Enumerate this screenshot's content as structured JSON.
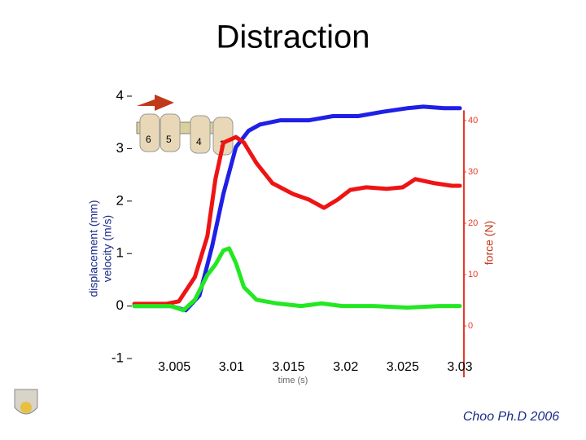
{
  "chart_data": {
    "type": "line",
    "title": "Distraction",
    "xlabel": "time (s)",
    "ylabel": "displacement (mm)",
    "ylabel_secondary": "velocity (m/s)",
    "y2label": "force (N)",
    "credit": "Choo Ph.D 2006",
    "image_labels": [
      "6",
      "5",
      "4",
      "3"
    ],
    "xlim": [
      3.001,
      3.03
    ],
    "xticks": [
      3.005,
      3.01,
      3.015,
      3.02,
      3.025,
      3.03
    ],
    "ylim": [
      -1,
      4
    ],
    "yticks": [
      -1,
      0,
      1,
      2,
      3,
      4
    ],
    "y2lim": [
      -10,
      42
    ],
    "y2ticks": [
      0,
      10,
      20,
      30,
      40
    ],
    "y2color": "#e53a2a",
    "series": [
      {
        "color": "#1f1fe8",
        "axis": "y",
        "x": [
          3.0015,
          3.0047,
          3.006,
          3.0072,
          3.0083,
          3.0093,
          3.0104,
          3.0115,
          3.0125,
          3.0143,
          3.0168,
          3.0189,
          3.0211,
          3.0232,
          3.0254,
          3.0268,
          3.0286,
          3.03
        ],
        "values": [
          0,
          0,
          -0.08,
          0.2,
          1.13,
          2.14,
          3.03,
          3.34,
          3.46,
          3.54,
          3.54,
          3.62,
          3.62,
          3.7,
          3.77,
          3.8,
          3.77,
          3.77
        ]
      },
      {
        "color": "#ee1414",
        "axis": "y2",
        "x": [
          3.0015,
          3.0043,
          3.0054,
          3.0068,
          3.0079,
          3.0086,
          3.0093,
          3.0104,
          3.0111,
          3.0122,
          3.0136,
          3.0154,
          3.0168,
          3.0181,
          3.0193,
          3.0204,
          3.0218,
          3.0236,
          3.025,
          3.0261,
          3.0278,
          3.0293,
          3.03
        ],
        "values": [
          4.3,
          4.3,
          4.8,
          9.5,
          17.5,
          28.6,
          35.7,
          36.8,
          35.7,
          31.7,
          27.8,
          25.7,
          24.6,
          23.0,
          24.6,
          26.5,
          27.0,
          26.7,
          27.0,
          28.6,
          27.8,
          27.3,
          27.3
        ]
      },
      {
        "color": "#22e822",
        "axis": "y",
        "x": [
          3.0015,
          3.0047,
          3.0058,
          3.0068,
          3.0079,
          3.0086,
          3.0093,
          3.0098,
          3.0104,
          3.0111,
          3.0122,
          3.014,
          3.0161,
          3.0179,
          3.0197,
          3.0225,
          3.0254,
          3.0282,
          3.03
        ],
        "values": [
          0,
          0,
          -0.08,
          0.12,
          0.59,
          0.79,
          1.06,
          1.1,
          0.82,
          0.36,
          0.12,
          0.05,
          0,
          0.05,
          0,
          0,
          -0.03,
          0,
          0
        ]
      }
    ]
  }
}
